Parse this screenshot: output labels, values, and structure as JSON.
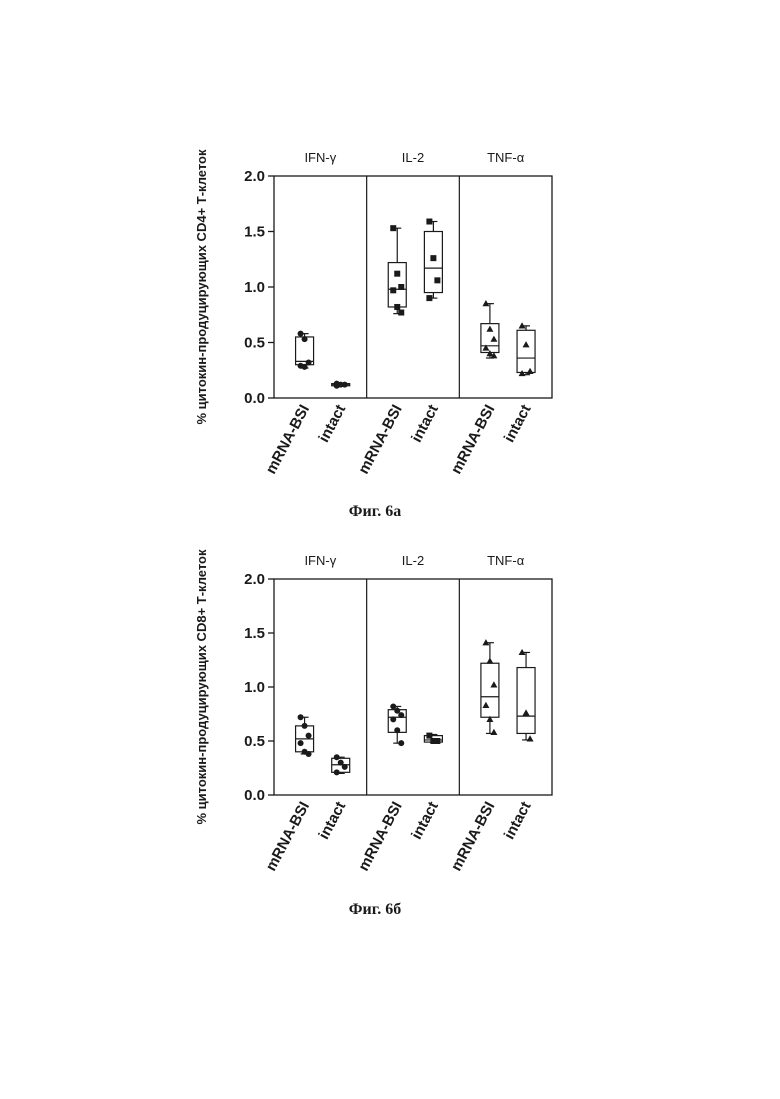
{
  "colors": {
    "ink": "#1a1a1a",
    "background": "#ffffff"
  },
  "chart_data": [
    {
      "type": "box",
      "caption": "Фиг. 6а",
      "ylabel": "% цитокин-продуцирующих CD4+ Т-клеток",
      "ylim": [
        0,
        2.0
      ],
      "yticks": [
        "0.0",
        "0.5",
        "1.0",
        "1.5",
        "2.0"
      ],
      "panels": [
        "IFN-γ",
        "IL-2",
        "TNF-α"
      ],
      "categories": [
        "mRNA-BSI",
        "intact",
        "mRNA-BSI",
        "intact",
        "mRNA-BSI",
        "intact"
      ],
      "boxes": [
        {
          "panel": 0,
          "marker": "circle",
          "min": 0.27,
          "q1": 0.3,
          "median": 0.33,
          "q3": 0.55,
          "max": 0.58,
          "points": [
            0.58,
            0.53,
            0.32,
            0.29,
            0.28
          ]
        },
        {
          "panel": 0,
          "marker": "circle",
          "min": 0.11,
          "q1": 0.11,
          "median": 0.12,
          "q3": 0.13,
          "max": 0.13,
          "points": [
            0.13,
            0.12,
            0.12,
            0.11
          ]
        },
        {
          "panel": 1,
          "marker": "square",
          "min": 0.76,
          "q1": 0.82,
          "median": 0.98,
          "q3": 1.22,
          "max": 1.53,
          "points": [
            1.53,
            1.12,
            1.0,
            0.97,
            0.82,
            0.77
          ]
        },
        {
          "panel": 1,
          "marker": "square",
          "min": 0.9,
          "q1": 0.95,
          "median": 1.17,
          "q3": 1.5,
          "max": 1.59,
          "points": [
            1.59,
            1.26,
            1.06,
            0.9
          ]
        },
        {
          "panel": 2,
          "marker": "triangle",
          "min": 0.36,
          "q1": 0.41,
          "median": 0.47,
          "q3": 0.67,
          "max": 0.85,
          "points": [
            0.85,
            0.62,
            0.53,
            0.45,
            0.4,
            0.38
          ]
        },
        {
          "panel": 2,
          "marker": "triangle",
          "min": 0.21,
          "q1": 0.23,
          "median": 0.36,
          "q3": 0.61,
          "max": 0.65,
          "points": [
            0.65,
            0.48,
            0.24,
            0.22
          ]
        }
      ]
    },
    {
      "type": "box",
      "caption": "Фиг. 6б",
      "ylabel": "% цитокин-продуцирующих CD8+ Т-клеток",
      "ylim": [
        0,
        2.0
      ],
      "yticks": [
        "0.0",
        "0.5",
        "1.0",
        "1.5",
        "2.0"
      ],
      "panels": [
        "IFN-γ",
        "IL-2",
        "TNF-α"
      ],
      "categories": [
        "mRNA-BSI",
        "intact",
        "mRNA-BSI",
        "intact",
        "mRNA-BSI",
        "intact"
      ],
      "boxes": [
        {
          "panel": 0,
          "marker": "circle",
          "min": 0.38,
          "q1": 0.4,
          "median": 0.52,
          "q3": 0.64,
          "max": 0.72,
          "points": [
            0.72,
            0.64,
            0.55,
            0.48,
            0.4,
            0.38
          ]
        },
        {
          "panel": 0,
          "marker": "circle",
          "min": 0.2,
          "q1": 0.21,
          "median": 0.28,
          "q3": 0.34,
          "max": 0.35,
          "points": [
            0.35,
            0.3,
            0.26,
            0.21
          ]
        },
        {
          "panel": 1,
          "marker": "circle",
          "min": 0.48,
          "q1": 0.58,
          "median": 0.72,
          "q3": 0.79,
          "max": 0.82,
          "points": [
            0.82,
            0.78,
            0.74,
            0.7,
            0.6,
            0.48
          ]
        },
        {
          "panel": 1,
          "marker": "square",
          "min": 0.49,
          "q1": 0.49,
          "median": 0.51,
          "q3": 0.55,
          "max": 0.56,
          "points": [
            0.55,
            0.5,
            0.5
          ]
        },
        {
          "panel": 2,
          "marker": "triangle",
          "min": 0.57,
          "q1": 0.72,
          "median": 0.91,
          "q3": 1.22,
          "max": 1.41,
          "points": [
            1.41,
            1.24,
            1.02,
            0.83,
            0.7,
            0.58
          ]
        },
        {
          "panel": 2,
          "marker": "triangle",
          "min": 0.51,
          "q1": 0.57,
          "median": 0.73,
          "q3": 1.18,
          "max": 1.32,
          "points": [
            1.32,
            0.76,
            0.52
          ]
        }
      ]
    }
  ]
}
